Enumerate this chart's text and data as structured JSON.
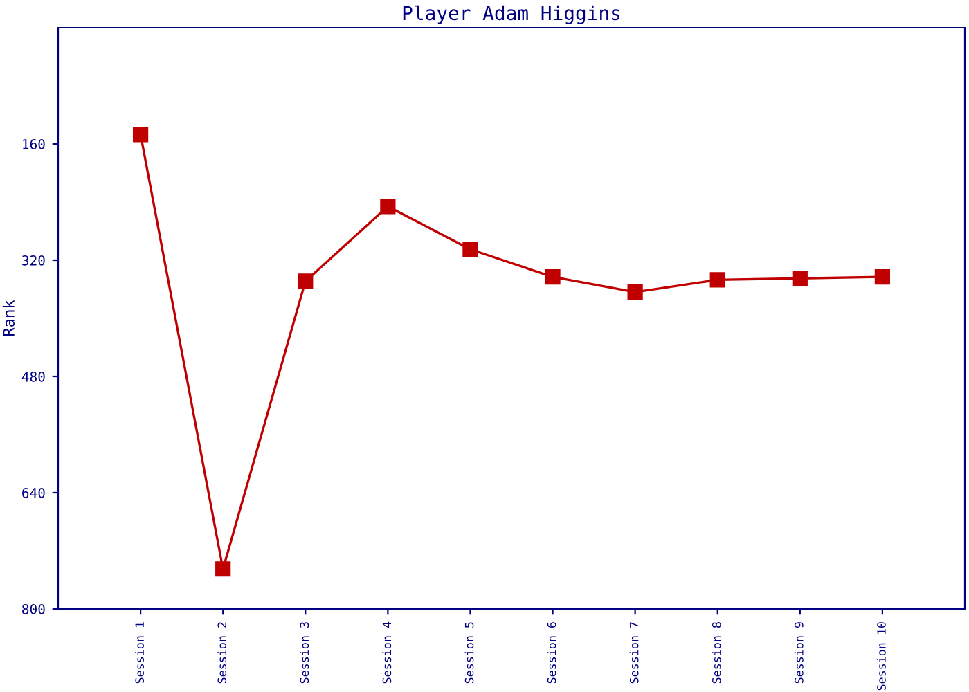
{
  "chart_data": {
    "type": "line",
    "title": "Player Adam Higgins",
    "ylabel": "Rank",
    "categories": [
      "Session 1",
      "Session 2",
      "Session 3",
      "Session 4",
      "Session 5",
      "Session 6",
      "Session 7",
      "Session 8",
      "Session 9",
      "Session 10"
    ],
    "series": [
      {
        "color": "#c00000",
        "values": [
          147,
          745,
          349,
          246,
          305,
          343,
          364,
          347,
          345,
          343
        ]
      }
    ],
    "ylim": [
      800,
      0
    ],
    "yticks": [
      160,
      320,
      480,
      640,
      800
    ],
    "grid": false,
    "legend": false,
    "marker": "square",
    "line_style": "solid"
  }
}
